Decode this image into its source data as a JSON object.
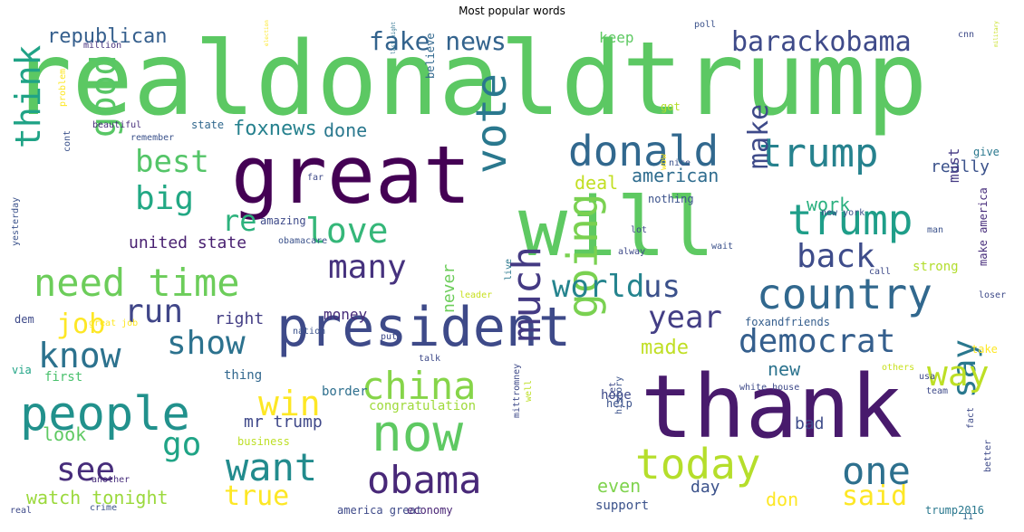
{
  "title": "Most popular words",
  "words": [
    {
      "text": "realdonaldtrump",
      "color": "#5cc863"
    },
    {
      "text": "great",
      "color": "#440154"
    },
    {
      "text": "will",
      "color": "#5ec962"
    },
    {
      "text": "thank",
      "color": "#481a6c"
    },
    {
      "text": "president",
      "color": "#3e4a89"
    },
    {
      "text": "donald",
      "color": "#31688e"
    },
    {
      "text": "trump",
      "color": "#26828e"
    },
    {
      "text": "trump",
      "color": "#1f9e89"
    },
    {
      "text": "country",
      "color": "#31688e"
    },
    {
      "text": "people",
      "color": "#21918c"
    },
    {
      "text": "need time",
      "color": "#6ccd5a"
    },
    {
      "text": "vote",
      "color": "#2a788e"
    },
    {
      "text": "now",
      "color": "#5ec962"
    },
    {
      "text": "obama",
      "color": "#482878"
    },
    {
      "text": "going",
      "color": "#7ad151"
    },
    {
      "text": "today",
      "color": "#b5de2b"
    },
    {
      "text": "want",
      "color": "#228b8d"
    },
    {
      "text": "one",
      "color": "#2d708e"
    },
    {
      "text": "china",
      "color": "#86d549"
    },
    {
      "text": "much",
      "color": "#443a83"
    },
    {
      "text": "democrat",
      "color": "#355f8d"
    },
    {
      "text": "say",
      "color": "#2a788e"
    },
    {
      "text": "way",
      "color": "#bddf26"
    },
    {
      "text": "love",
      "color": "#35b779"
    },
    {
      "text": "many",
      "color": "#46327e"
    },
    {
      "text": "back",
      "color": "#3e4c8a"
    },
    {
      "text": "year",
      "color": "#433e85"
    },
    {
      "text": "world",
      "color": "#25848e"
    },
    {
      "text": "us",
      "color": "#3b518b"
    },
    {
      "text": "show",
      "color": "#2c728e"
    },
    {
      "text": "know",
      "color": "#2c728e"
    },
    {
      "text": "run",
      "color": "#404688"
    },
    {
      "text": "job",
      "color": "#fde725"
    },
    {
      "text": "win",
      "color": "#fde725"
    },
    {
      "text": "see",
      "color": "#472d7b"
    },
    {
      "text": "go",
      "color": "#20a486"
    },
    {
      "text": "think",
      "color": "#20a386"
    },
    {
      "text": "good",
      "color": "#58c765"
    },
    {
      "text": "best",
      "color": "#54c568"
    },
    {
      "text": "big",
      "color": "#22a884"
    },
    {
      "text": "re",
      "color": "#2db27d"
    },
    {
      "text": "make",
      "color": "#3e4a89"
    },
    {
      "text": "true",
      "color": "#fde725"
    },
    {
      "text": "said",
      "color": "#fde725"
    },
    {
      "text": "barackobama",
      "color": "#3e4a89"
    },
    {
      "text": "fake news",
      "color": "#33638d"
    },
    {
      "text": "republican",
      "color": "#355f8d"
    },
    {
      "text": "watch tonight",
      "color": "#9bd93c"
    },
    {
      "text": "foxnews",
      "color": "#26818e"
    },
    {
      "text": "done",
      "color": "#2a788e"
    },
    {
      "text": "united state",
      "color": "#481f70"
    },
    {
      "text": "american",
      "color": "#2f6c8e"
    },
    {
      "text": "deal",
      "color": "#c2df23"
    },
    {
      "text": "work",
      "color": "#2ab07f"
    },
    {
      "text": "really",
      "color": "#3b528b"
    },
    {
      "text": "must",
      "color": "#443983"
    },
    {
      "text": "never",
      "color": "#6ccd5a"
    },
    {
      "text": "right",
      "color": "#433e85"
    },
    {
      "text": "money",
      "color": "#472c7a"
    },
    {
      "text": "made",
      "color": "#c0df25"
    },
    {
      "text": "new",
      "color": "#2c738e"
    },
    {
      "text": "mr trump",
      "color": "#3f4889"
    },
    {
      "text": "look",
      "color": "#5ec962"
    },
    {
      "text": "bad",
      "color": "#3e4c8a"
    },
    {
      "text": "day",
      "color": "#3b528b"
    },
    {
      "text": "don",
      "color": "#fde725"
    },
    {
      "text": "even",
      "color": "#7fd34e"
    },
    {
      "text": "keep",
      "color": "#5ec962"
    },
    {
      "text": "congratulation",
      "color": "#9fda3a"
    },
    {
      "text": "hope",
      "color": "#3e4989"
    },
    {
      "text": "strong",
      "color": "#b2dd2d"
    },
    {
      "text": "thing",
      "color": "#31678e"
    },
    {
      "text": "border",
      "color": "#2e6f8e"
    },
    {
      "text": "first",
      "color": "#4ac16d"
    },
    {
      "text": "business",
      "color": "#bddf26"
    },
    {
      "text": "support",
      "color": "#3b528b"
    },
    {
      "text": "america great",
      "color": "#3e4a89"
    },
    {
      "text": "economy",
      "color": "#482475"
    },
    {
      "text": "trump2016",
      "color": "#2a788e"
    },
    {
      "text": "foxandfriends",
      "color": "#355e8d"
    },
    {
      "text": "take",
      "color": "#fde725"
    },
    {
      "text": "give",
      "color": "#2a788e"
    },
    {
      "text": "nothing",
      "color": "#3b528b"
    },
    {
      "text": "amazing",
      "color": "#3e4a89"
    },
    {
      "text": "state",
      "color": "#31688e"
    },
    {
      "text": "beautiful",
      "color": "#472d7b"
    },
    {
      "text": "remember",
      "color": "#3b528b"
    },
    {
      "text": "million",
      "color": "#46327e"
    },
    {
      "text": "election",
      "color": "#fde725"
    },
    {
      "text": "last night",
      "color": "#2c728e"
    },
    {
      "text": "believe",
      "color": "#31688e"
    },
    {
      "text": "poll",
      "color": "#3b528b"
    },
    {
      "text": "got",
      "color": "#b5de2b"
    },
    {
      "text": "military",
      "color": "#c8e020"
    },
    {
      "text": "problem",
      "color": "#fde725"
    },
    {
      "text": "cont",
      "color": "#3b528b"
    },
    {
      "text": "far",
      "color": "#3e4a89"
    },
    {
      "text": "nice",
      "color": "#3b528b"
    },
    {
      "text": "wow",
      "color": "#fde725"
    },
    {
      "text": "new york",
      "color": "#3b528b"
    },
    {
      "text": "man",
      "color": "#3b528b"
    },
    {
      "text": "make america",
      "color": "#472d7b"
    },
    {
      "text": "call",
      "color": "#3e4a89"
    },
    {
      "text": "alway",
      "color": "#3e4a89"
    },
    {
      "text": "live",
      "color": "#2a788e"
    },
    {
      "text": "leader",
      "color": "#c8e020"
    },
    {
      "text": "nation",
      "color": "#3b528b"
    },
    {
      "text": "put",
      "color": "#3e4a89"
    },
    {
      "text": "lot",
      "color": "#3e4a89"
    },
    {
      "text": "obamacare",
      "color": "#3b528b"
    },
    {
      "text": "yesterday",
      "color": "#3b528b"
    },
    {
      "text": "dem",
      "color": "#3e4a89"
    },
    {
      "text": "great job",
      "color": "#fde725"
    },
    {
      "text": "via",
      "color": "#20a486"
    },
    {
      "text": "talk",
      "color": "#3e4a89"
    },
    {
      "text": "help",
      "color": "#3b528b"
    },
    {
      "text": "others",
      "color": "#c8e020"
    },
    {
      "text": "white house",
      "color": "#3e4a89"
    },
    {
      "text": "history",
      "color": "#3b528b"
    },
    {
      "text": "let",
      "color": "#3e4a89"
    },
    {
      "text": "well",
      "color": "#bddf26"
    },
    {
      "text": "mittromney",
      "color": "#3e4a89"
    },
    {
      "text": "another",
      "color": "#472d7b"
    },
    {
      "text": "crime",
      "color": "#3b528b"
    },
    {
      "text": "real",
      "color": "#3e4a89"
    },
    {
      "text": "fact",
      "color": "#3e4a89"
    },
    {
      "text": "better",
      "color": "#3e4a89"
    },
    {
      "text": "11",
      "color": "#31688e"
    },
    {
      "text": "wait",
      "color": "#3b528b"
    },
    {
      "text": "cnn",
      "color": "#3e4a89"
    },
    {
      "text": "usa",
      "color": "#3e4a89"
    },
    {
      "text": "team",
      "color": "#3e4a89"
    },
    {
      "text": "loser",
      "color": "#3e4a89"
    }
  ]
}
